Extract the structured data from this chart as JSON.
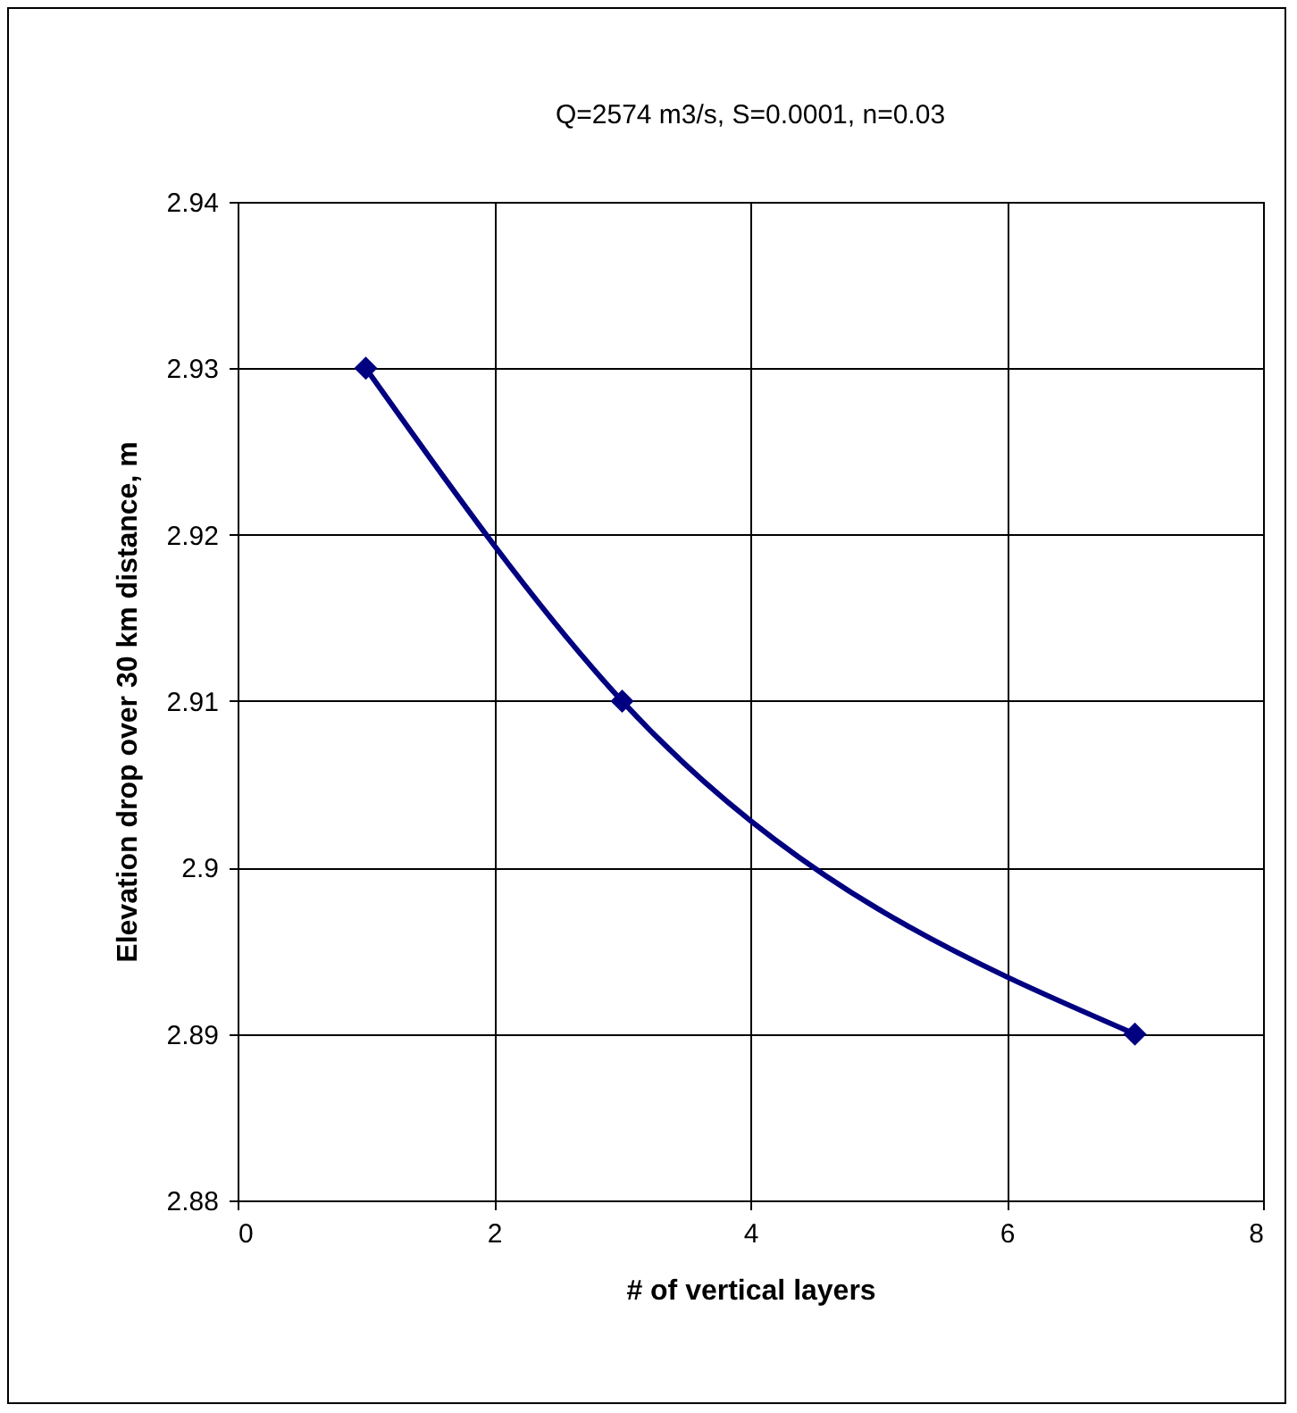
{
  "chart_data": {
    "type": "line",
    "title": "Q=2574 m3/s, S=0.0001, n=0.03",
    "xlabel": "# of vertical layers",
    "ylabel": "Elevation drop over 30 km distance, m",
    "x": [
      1,
      3,
      7
    ],
    "series": [
      {
        "color": "#000080",
        "values": [
          2.93,
          2.91,
          2.89
        ]
      }
    ],
    "xlim": [
      0,
      8
    ],
    "xticks": [
      0,
      2,
      4,
      6,
      8
    ],
    "ylim": [
      2.88,
      2.94
    ],
    "yticks": [
      2.88,
      2.89,
      2.9,
      2.91,
      2.92,
      2.93,
      2.94
    ],
    "grid": true,
    "marker": "diamond",
    "line_style": "solid"
  }
}
